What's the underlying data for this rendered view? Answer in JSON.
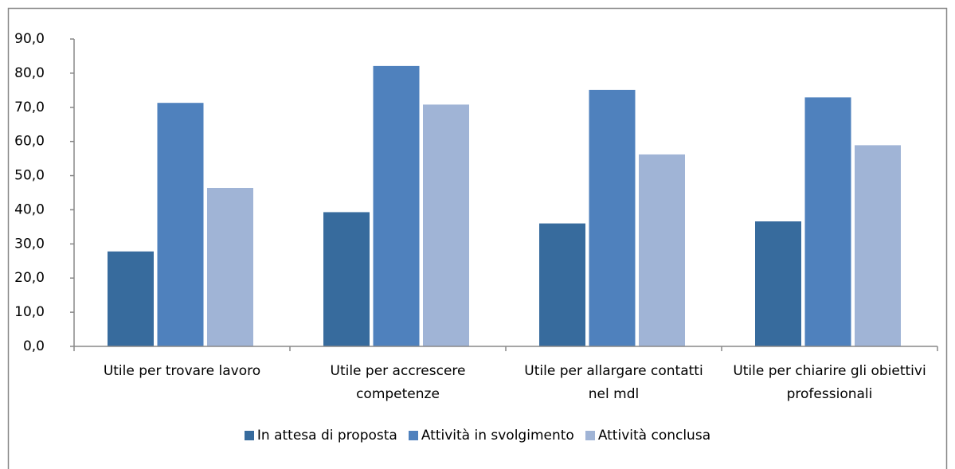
{
  "chart_data": {
    "type": "bar",
    "categories": [
      "Utile per trovare lavoro",
      "Utile per accrescere competenze",
      "Utile per allargare contatti nel mdl",
      "Utile per chiarire gli obiettivi professionali"
    ],
    "series": [
      {
        "name": "In attesa di proposta",
        "color": "#376b9d",
        "values": [
          27.8,
          39.3,
          36.0,
          36.6
        ]
      },
      {
        "name": "Attività in svolgimento",
        "color": "#4f81bd",
        "values": [
          71.3,
          82.1,
          75.1,
          72.9
        ]
      },
      {
        "name": "Attività conclusa",
        "color": "#a0b4d6",
        "values": [
          46.4,
          70.8,
          56.2,
          58.9
        ]
      }
    ],
    "ylim": [
      0,
      90
    ],
    "yticks": [
      {
        "value": 0,
        "label": "0,0"
      },
      {
        "value": 10,
        "label": "10,0"
      },
      {
        "value": 20,
        "label": "20,0"
      },
      {
        "value": 30,
        "label": "30,0"
      },
      {
        "value": 40,
        "label": "40,0"
      },
      {
        "value": 50,
        "label": "50,0"
      },
      {
        "value": 60,
        "label": "60,0"
      },
      {
        "value": 70,
        "label": "70,0"
      },
      {
        "value": 80,
        "label": "80,0"
      },
      {
        "value": 90,
        "label": "90,0"
      }
    ],
    "legend": "bottom"
  }
}
